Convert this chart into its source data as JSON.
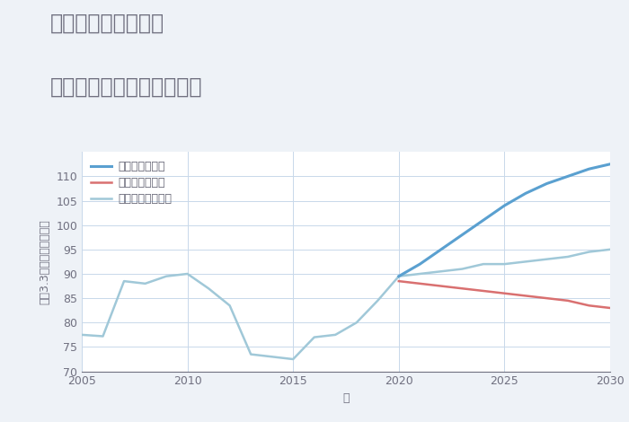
{
  "title_line1": "千葉県市原市風戸の",
  "title_line2": "中古マンションの価格推移",
  "xlabel": "年",
  "ylabel": "坪（3.3㎡）単価（万円）",
  "ylim": [
    70,
    115
  ],
  "yticks": [
    70,
    75,
    80,
    85,
    90,
    95,
    100,
    105,
    110
  ],
  "xlim": [
    2005,
    2030
  ],
  "xticks": [
    2005,
    2010,
    2015,
    2020,
    2025,
    2030
  ],
  "background_color": "#eef2f7",
  "plot_bg_color": "#ffffff",
  "grid_color": "#c8d8ea",
  "good_color": "#5aa0d0",
  "bad_color": "#d97070",
  "normal_color": "#a0c8d8",
  "good_label": "グッドシナリオ",
  "bad_label": "バッドシナリオ",
  "normal_label": "ノーマルシナリオ",
  "normal_x": [
    2005,
    2006,
    2007,
    2008,
    2009,
    2010,
    2011,
    2012,
    2013,
    2014,
    2015,
    2016,
    2017,
    2018,
    2019,
    2020,
    2021,
    2022,
    2023,
    2024,
    2025,
    2026,
    2027,
    2028,
    2029,
    2030
  ],
  "normal_y": [
    77.5,
    77.2,
    88.5,
    88.0,
    89.5,
    90.0,
    87.0,
    83.5,
    73.5,
    73.0,
    72.5,
    77.0,
    77.5,
    80.0,
    84.5,
    89.5,
    90.0,
    90.5,
    91.0,
    92.0,
    92.0,
    92.5,
    93.0,
    93.5,
    94.5,
    95.0
  ],
  "good_x": [
    2020,
    2021,
    2022,
    2023,
    2024,
    2025,
    2026,
    2027,
    2028,
    2029,
    2030
  ],
  "good_y": [
    89.5,
    92.0,
    95.0,
    98.0,
    101.0,
    104.0,
    106.5,
    108.5,
    110.0,
    111.5,
    112.5
  ],
  "bad_x": [
    2020,
    2021,
    2022,
    2023,
    2024,
    2025,
    2026,
    2027,
    2028,
    2029,
    2030
  ],
  "bad_y": [
    88.5,
    88.0,
    87.5,
    87.0,
    86.5,
    86.0,
    85.5,
    85.0,
    84.5,
    83.5,
    83.0
  ],
  "title_color": "#707080",
  "tick_color": "#707080",
  "legend_text_color": "#606070",
  "title_fontsize": 17,
  "axis_label_fontsize": 9,
  "tick_fontsize": 9,
  "legend_fontsize": 9
}
